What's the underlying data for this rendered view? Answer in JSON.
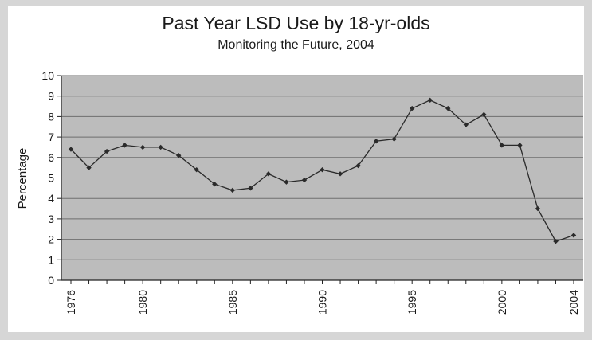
{
  "chart_data": {
    "type": "line",
    "title": "Past Year LSD Use by 18-yr-olds",
    "subtitle": "Monitoring the Future, 2004",
    "xlabel": "",
    "ylabel": "Percentage",
    "ylim": [
      0,
      10
    ],
    "xlim": [
      1976,
      2004
    ],
    "yticks": [
      "0",
      "1",
      "2",
      "3",
      "4",
      "5",
      "6",
      "7",
      "8",
      "9",
      "10"
    ],
    "xtick_labels": [
      "1976",
      "1980",
      "1985",
      "1990",
      "1995",
      "2000",
      "2004"
    ],
    "grid": true,
    "legend": "none",
    "colors": {
      "plot_bg": "#bcbcbc",
      "line": "#2a2a2a",
      "grid": "#6e6e6e",
      "page_bg": "#d6d6d6"
    },
    "x": [
      1976,
      1977,
      1978,
      1979,
      1980,
      1981,
      1982,
      1983,
      1984,
      1985,
      1986,
      1987,
      1988,
      1989,
      1990,
      1991,
      1992,
      1993,
      1994,
      1995,
      1996,
      1997,
      1998,
      1999,
      2000,
      2001,
      2002,
      2003,
      2004
    ],
    "series": [
      {
        "values": [
          6.4,
          5.5,
          6.3,
          6.6,
          6.5,
          6.5,
          6.1,
          5.4,
          4.7,
          4.4,
          4.5,
          5.2,
          4.8,
          4.9,
          5.4,
          5.2,
          5.6,
          6.8,
          6.9,
          8.4,
          8.8,
          8.4,
          7.6,
          8.1,
          6.6,
          6.6,
          3.5,
          1.9,
          2.2
        ]
      }
    ]
  }
}
